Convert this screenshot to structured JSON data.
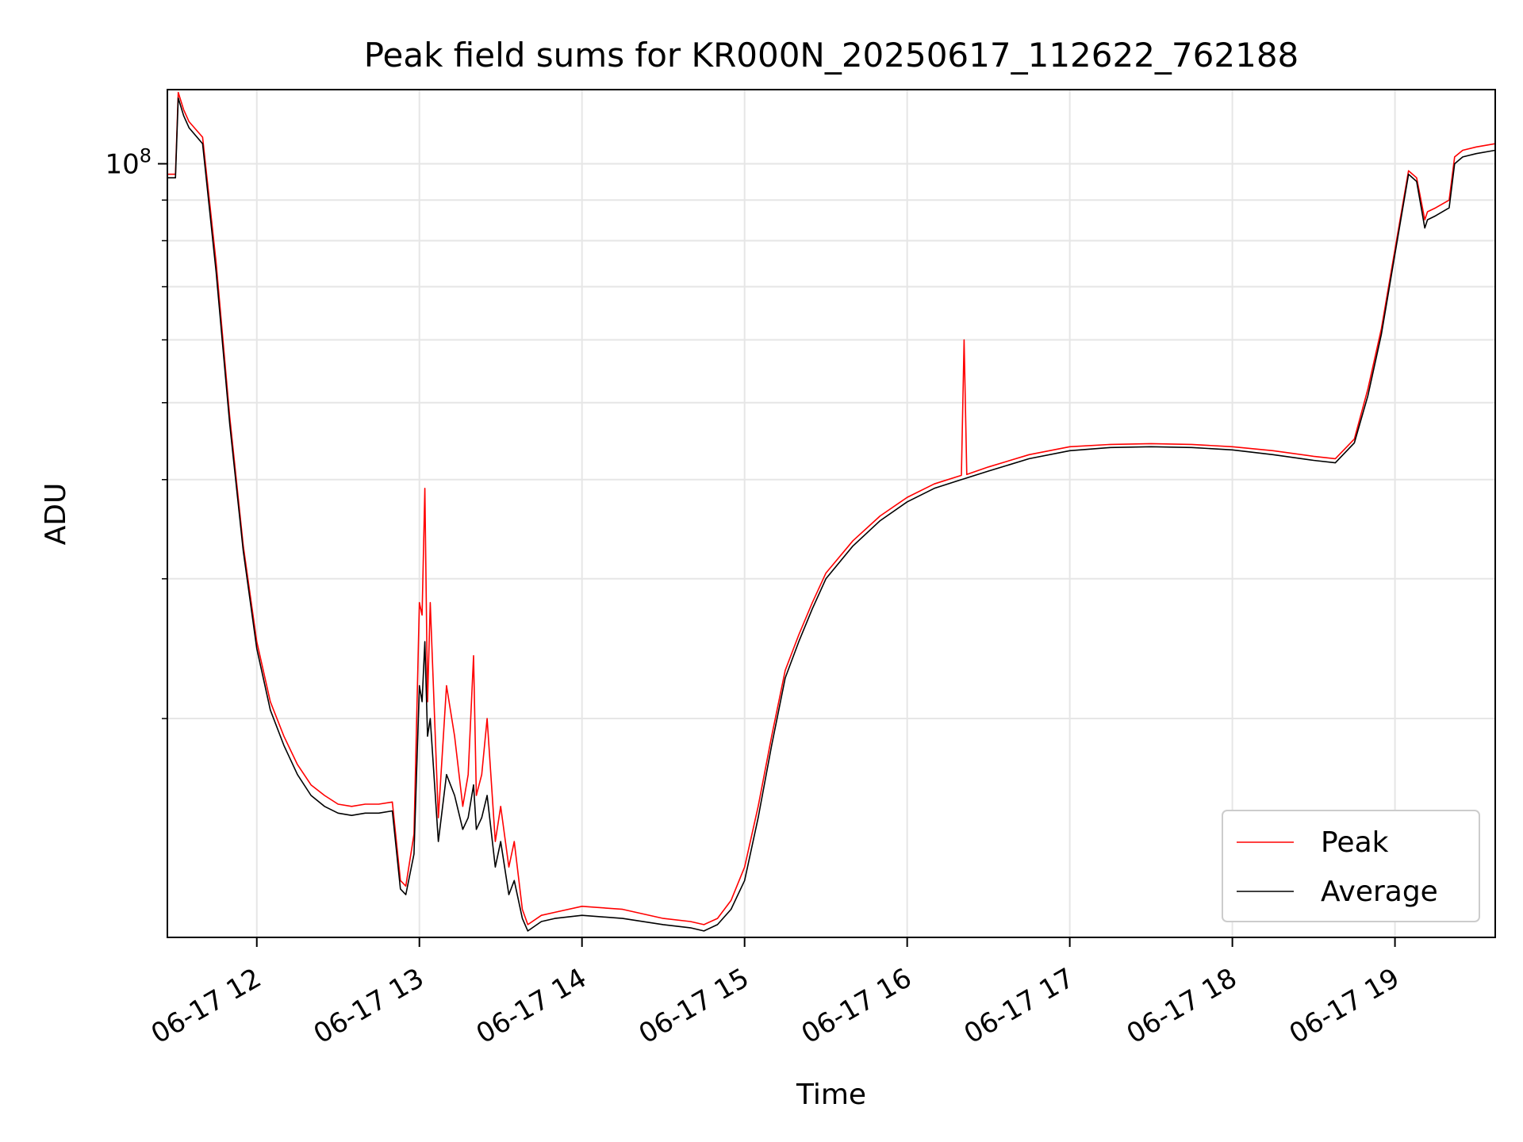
{
  "chart_data": {
    "type": "line",
    "title": "Peak field sums for KR000N_20250617_112622_762188",
    "xlabel": "Time",
    "ylabel": "ADU",
    "x_scale": "time",
    "y_scale": "log",
    "xlim": [
      "2025-06-17 11:27",
      "2025-06-17 19:37"
    ],
    "ylim": [
      10600000,
      124000000
    ],
    "x_ticks": [
      "2025-06-17 12:00",
      "2025-06-17 13:00",
      "2025-06-17 14:00",
      "2025-06-17 15:00",
      "2025-06-17 16:00",
      "2025-06-17 17:00",
      "2025-06-17 18:00",
      "2025-06-17 19:00"
    ],
    "x_tick_labels": [
      "06-17 12",
      "06-17 13",
      "06-17 14",
      "06-17 15",
      "06-17 16",
      "06-17 17",
      "06-17 18",
      "06-17 19"
    ],
    "y_major_ticks": [
      100000000
    ],
    "y_major_tick_labels": [
      "10^8"
    ],
    "y_minor_ticks": [
      20000000,
      30000000,
      40000000,
      50000000,
      60000000,
      70000000,
      80000000,
      90000000
    ],
    "grid": true,
    "legend_position": "lower right",
    "series": [
      {
        "name": "Peak",
        "color": "#ff0000",
        "x": [
          "2025-06-17 11:27",
          "2025-06-17 11:30",
          "2025-06-17 11:31",
          "2025-06-17 11:33",
          "2025-06-17 11:35",
          "2025-06-17 11:40",
          "2025-06-17 11:45",
          "2025-06-17 11:50",
          "2025-06-17 11:55",
          "2025-06-17 12:00",
          "2025-06-17 12:05",
          "2025-06-17 12:10",
          "2025-06-17 12:15",
          "2025-06-17 12:20",
          "2025-06-17 12:25",
          "2025-06-17 12:30",
          "2025-06-17 12:35",
          "2025-06-17 12:40",
          "2025-06-17 12:45",
          "2025-06-17 12:50",
          "2025-06-17 12:53",
          "2025-06-17 12:55",
          "2025-06-17 12:58",
          "2025-06-17 13:00",
          "2025-06-17 13:01",
          "2025-06-17 13:02",
          "2025-06-17 13:03",
          "2025-06-17 13:04",
          "2025-06-17 13:07",
          "2025-06-17 13:10",
          "2025-06-17 13:13",
          "2025-06-17 13:16",
          "2025-06-17 13:18",
          "2025-06-17 13:20",
          "2025-06-17 13:21",
          "2025-06-17 13:23",
          "2025-06-17 13:25",
          "2025-06-17 13:28",
          "2025-06-17 13:30",
          "2025-06-17 13:33",
          "2025-06-17 13:35",
          "2025-06-17 13:38",
          "2025-06-17 13:40",
          "2025-06-17 13:45",
          "2025-06-17 13:50",
          "2025-06-17 14:00",
          "2025-06-17 14:15",
          "2025-06-17 14:30",
          "2025-06-17 14:40",
          "2025-06-17 14:45",
          "2025-06-17 14:50",
          "2025-06-17 14:55",
          "2025-06-17 15:00",
          "2025-06-17 15:05",
          "2025-06-17 15:10",
          "2025-06-17 15:15",
          "2025-06-17 15:20",
          "2025-06-17 15:25",
          "2025-06-17 15:30",
          "2025-06-17 15:40",
          "2025-06-17 15:50",
          "2025-06-17 16:00",
          "2025-06-17 16:10",
          "2025-06-17 16:20",
          "2025-06-17 16:21",
          "2025-06-17 16:22",
          "2025-06-17 16:30",
          "2025-06-17 16:45",
          "2025-06-17 17:00",
          "2025-06-17 17:15",
          "2025-06-17 17:30",
          "2025-06-17 17:45",
          "2025-06-17 18:00",
          "2025-06-17 18:15",
          "2025-06-17 18:30",
          "2025-06-17 18:38",
          "2025-06-17 18:45",
          "2025-06-17 18:50",
          "2025-06-17 18:55",
          "2025-06-17 19:00",
          "2025-06-17 19:05",
          "2025-06-17 19:08",
          "2025-06-17 19:11",
          "2025-06-17 19:12",
          "2025-06-17 19:15",
          "2025-06-17 19:20",
          "2025-06-17 19:22",
          "2025-06-17 19:25",
          "2025-06-17 19:30",
          "2025-06-17 19:37"
        ],
        "y": [
          97000000,
          97000000,
          123000000,
          117000000,
          113000000,
          108000000,
          75000000,
          48000000,
          33000000,
          25000000,
          21000000,
          19000000,
          17500000,
          16500000,
          16000000,
          15600000,
          15500000,
          15600000,
          15600000,
          15700000,
          12500000,
          12300000,
          14300000,
          28000000,
          27000000,
          39000000,
          21000000,
          28000000,
          15000000,
          22000000,
          19000000,
          15500000,
          17000000,
          24000000,
          16000000,
          17000000,
          20000000,
          14000000,
          15500000,
          13000000,
          14000000,
          11500000,
          11000000,
          11300000,
          11400000,
          11600000,
          11500000,
          11200000,
          11100000,
          11000000,
          11200000,
          11800000,
          13000000,
          15500000,
          19000000,
          23000000,
          25500000,
          28000000,
          30500000,
          33500000,
          36000000,
          38000000,
          39500000,
          40500000,
          60000000,
          40600000,
          41500000,
          43000000,
          44000000,
          44300000,
          44400000,
          44300000,
          44000000,
          43500000,
          42800000,
          42500000,
          45000000,
          52000000,
          62000000,
          78000000,
          98000000,
          96000000,
          85000000,
          87000000,
          88000000,
          90000000,
          102000000,
          104000000,
          105000000,
          106000000
        ]
      },
      {
        "name": "Average",
        "color": "#000000",
        "x": [
          "2025-06-17 11:27",
          "2025-06-17 11:30",
          "2025-06-17 11:31",
          "2025-06-17 11:33",
          "2025-06-17 11:35",
          "2025-06-17 11:40",
          "2025-06-17 11:45",
          "2025-06-17 11:50",
          "2025-06-17 11:55",
          "2025-06-17 12:00",
          "2025-06-17 12:05",
          "2025-06-17 12:10",
          "2025-06-17 12:15",
          "2025-06-17 12:20",
          "2025-06-17 12:25",
          "2025-06-17 12:30",
          "2025-06-17 12:35",
          "2025-06-17 12:40",
          "2025-06-17 12:45",
          "2025-06-17 12:50",
          "2025-06-17 12:53",
          "2025-06-17 12:55",
          "2025-06-17 12:58",
          "2025-06-17 13:00",
          "2025-06-17 13:01",
          "2025-06-17 13:02",
          "2025-06-17 13:03",
          "2025-06-17 13:04",
          "2025-06-17 13:07",
          "2025-06-17 13:10",
          "2025-06-17 13:13",
          "2025-06-17 13:16",
          "2025-06-17 13:18",
          "2025-06-17 13:20",
          "2025-06-17 13:21",
          "2025-06-17 13:23",
          "2025-06-17 13:25",
          "2025-06-17 13:28",
          "2025-06-17 13:30",
          "2025-06-17 13:33",
          "2025-06-17 13:35",
          "2025-06-17 13:38",
          "2025-06-17 13:40",
          "2025-06-17 13:45",
          "2025-06-17 13:50",
          "2025-06-17 14:00",
          "2025-06-17 14:15",
          "2025-06-17 14:30",
          "2025-06-17 14:40",
          "2025-06-17 14:45",
          "2025-06-17 14:50",
          "2025-06-17 14:55",
          "2025-06-17 15:00",
          "2025-06-17 15:05",
          "2025-06-17 15:10",
          "2025-06-17 15:15",
          "2025-06-17 15:20",
          "2025-06-17 15:25",
          "2025-06-17 15:30",
          "2025-06-17 15:40",
          "2025-06-17 15:50",
          "2025-06-17 16:00",
          "2025-06-17 16:10",
          "2025-06-17 16:20",
          "2025-06-17 16:21",
          "2025-06-17 16:22",
          "2025-06-17 16:30",
          "2025-06-17 16:45",
          "2025-06-17 17:00",
          "2025-06-17 17:15",
          "2025-06-17 17:30",
          "2025-06-17 17:45",
          "2025-06-17 18:00",
          "2025-06-17 18:15",
          "2025-06-17 18:30",
          "2025-06-17 18:38",
          "2025-06-17 18:45",
          "2025-06-17 18:50",
          "2025-06-17 18:55",
          "2025-06-17 19:00",
          "2025-06-17 19:05",
          "2025-06-17 19:08",
          "2025-06-17 19:11",
          "2025-06-17 19:12",
          "2025-06-17 19:15",
          "2025-06-17 19:20",
          "2025-06-17 19:22",
          "2025-06-17 19:25",
          "2025-06-17 19:30",
          "2025-06-17 19:37"
        ],
        "y": [
          96000000,
          96000000,
          121000000,
          115000000,
          111000000,
          106000000,
          73000000,
          47000000,
          32500000,
          24500000,
          20500000,
          18500000,
          17000000,
          16000000,
          15500000,
          15200000,
          15100000,
          15200000,
          15200000,
          15300000,
          12200000,
          12000000,
          13500000,
          22000000,
          21000000,
          25000000,
          19000000,
          20000000,
          14000000,
          17000000,
          16000000,
          14500000,
          15000000,
          16500000,
          14500000,
          15000000,
          16000000,
          13000000,
          14000000,
          12000000,
          12500000,
          11200000,
          10800000,
          11100000,
          11200000,
          11300000,
          11200000,
          11000000,
          10900000,
          10800000,
          11000000,
          11500000,
          12500000,
          15000000,
          18500000,
          22500000,
          25000000,
          27500000,
          30000000,
          33000000,
          35500000,
          37500000,
          39000000,
          40000000,
          40100000,
          40200000,
          41000000,
          42500000,
          43500000,
          43900000,
          44000000,
          43900000,
          43600000,
          43000000,
          42300000,
          42000000,
          44500000,
          51000000,
          61000000,
          77000000,
          97000000,
          95000000,
          83000000,
          85000000,
          86000000,
          88000000,
          100000000,
          102000000,
          103000000,
          104000000
        ]
      }
    ]
  }
}
